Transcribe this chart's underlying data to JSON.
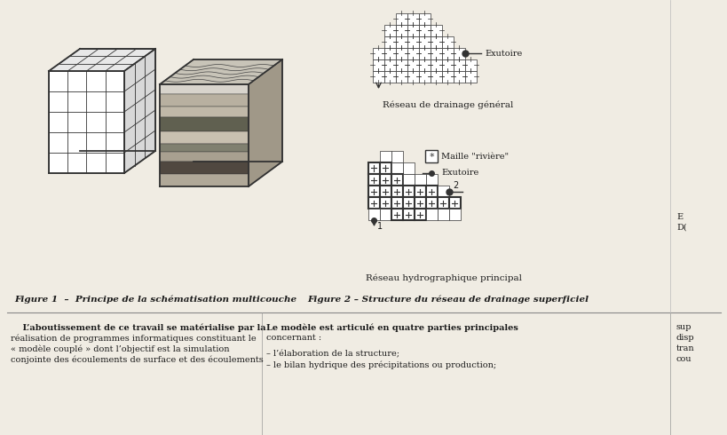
{
  "fig_caption_1": "Figure 1  –  Principe de la schématisation multicouche",
  "fig_caption_2": "Figure 2 – Structure du réseau de drainage superficiel",
  "label_drainage": "Réseau de drainage général",
  "label_hydro": "Réseau hydrographique principal",
  "label_exutoire1": "Exutoire",
  "label_exutoire2": "Exutoire",
  "label_maille": "Maille \"rivière\"",
  "bg_color": "#f0ece3",
  "text_color": "#1a1a1a",
  "line_color": "#2a2a2a",
  "col1_lines": [
    "    L’aboutissement de ce travail se matérialise par la",
    "réalisation de programmes informatiques constituant le",
    "« modèle couplé » dont l’objectif est la simulation",
    "conjointe des écoulements de surface et des écoulements"
  ],
  "col2_line1": "Le modèle est articulé en quatre parties principales",
  "col2_line2": "concernant :",
  "col2_line3": "– l’élaboration de la structure;",
  "col2_line4": "– le bilan hydrique des précipitations ou production;",
  "col3_lines": [
    "sup",
    "disp",
    "tran",
    "cou"
  ]
}
